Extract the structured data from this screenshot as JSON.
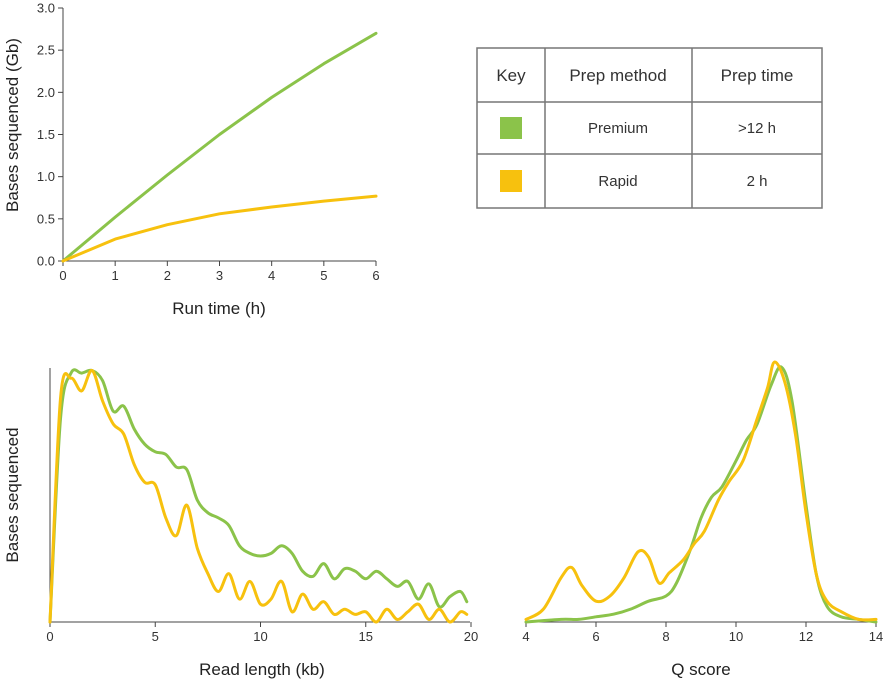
{
  "colors": {
    "premium": "#8bc34a",
    "rapid": "#f7c10e"
  },
  "chart_data": [
    {
      "type": "line",
      "xlabel": "Run time (h)",
      "ylabel": "Bases sequenced (Gb)",
      "xlim": [
        0,
        6
      ],
      "ylim": [
        0,
        3.0
      ],
      "xticks": [
        "0",
        "1",
        "2",
        "3",
        "4",
        "5",
        "6"
      ],
      "yticks": [
        "0.0",
        "0.5",
        "1.0",
        "1.5",
        "2.0",
        "2.5",
        "3.0"
      ],
      "series": [
        {
          "name": "Premium",
          "x": [
            0,
            1,
            2,
            3,
            4,
            5,
            6
          ],
          "values": [
            0,
            0.52,
            1.02,
            1.5,
            1.94,
            2.34,
            2.7
          ]
        },
        {
          "name": "Rapid",
          "x": [
            0,
            1,
            2,
            3,
            4,
            5,
            6
          ],
          "values": [
            0,
            0.26,
            0.43,
            0.56,
            0.64,
            0.71,
            0.77
          ]
        }
      ]
    },
    {
      "type": "line",
      "xlabel": "Read length (kb)",
      "ylabel": "Bases sequenced",
      "xlim": [
        0,
        20
      ],
      "ylim": [
        0,
        1
      ],
      "xticks": [
        "0",
        "5",
        "10",
        "15",
        "20"
      ],
      "series": [
        {
          "name": "Premium",
          "x": [
            0,
            0.5,
            1,
            1.5,
            2,
            2.5,
            3,
            3.5,
            4,
            4.5,
            5,
            5.5,
            6,
            6.5,
            7,
            7.5,
            8,
            8.5,
            9,
            9.5,
            10,
            10.5,
            11,
            11.5,
            12,
            12.5,
            13,
            13.5,
            14,
            14.5,
            15,
            15.5,
            16,
            16.5,
            17,
            17.5,
            18,
            18.5,
            19,
            19.5,
            19.8
          ],
          "values": [
            0,
            0.8,
            0.98,
            0.98,
            0.99,
            0.95,
            0.83,
            0.85,
            0.76,
            0.7,
            0.67,
            0.66,
            0.61,
            0.6,
            0.48,
            0.43,
            0.41,
            0.38,
            0.3,
            0.27,
            0.26,
            0.27,
            0.3,
            0.27,
            0.2,
            0.18,
            0.23,
            0.17,
            0.21,
            0.2,
            0.17,
            0.2,
            0.17,
            0.14,
            0.16,
            0.09,
            0.15,
            0.06,
            0.1,
            0.12,
            0.08
          ]
        },
        {
          "name": "Rapid",
          "x": [
            0,
            0.5,
            1,
            1.5,
            2,
            2.5,
            3,
            3.5,
            4,
            4.5,
            5,
            5.5,
            6,
            6.5,
            7,
            7.5,
            8,
            8.5,
            9,
            9.5,
            10,
            10.5,
            11,
            11.5,
            12,
            12.5,
            13,
            13.5,
            14,
            14.5,
            15,
            15.5,
            16,
            16.5,
            17,
            17.5,
            18,
            18.5,
            19,
            19.5,
            19.8
          ],
          "values": [
            0,
            0.88,
            0.96,
            0.91,
            0.99,
            0.87,
            0.78,
            0.74,
            0.62,
            0.55,
            0.54,
            0.41,
            0.34,
            0.46,
            0.29,
            0.19,
            0.12,
            0.19,
            0.09,
            0.16,
            0.07,
            0.09,
            0.16,
            0.04,
            0.11,
            0.05,
            0.08,
            0.03,
            0.05,
            0.03,
            0.04,
            0.0,
            0.05,
            0.01,
            0.04,
            0.07,
            0.01,
            0.05,
            0.0,
            0.04,
            0.03
          ]
        }
      ]
    },
    {
      "type": "line",
      "xlabel": "Q score",
      "xlim": [
        4,
        14
      ],
      "ylim": [
        0,
        1
      ],
      "xticks": [
        "4",
        "6",
        "8",
        "10",
        "12",
        "14"
      ],
      "series": [
        {
          "name": "Premium",
          "x": [
            4,
            5,
            5.5,
            6,
            6.5,
            7,
            7.5,
            8,
            8.3,
            8.7,
            9,
            9.3,
            9.6,
            10,
            10.3,
            10.6,
            11,
            11.3,
            11.6,
            12,
            12.3,
            12.6,
            13,
            13.5,
            14
          ],
          "values": [
            0,
            0.01,
            0.01,
            0.02,
            0.03,
            0.05,
            0.08,
            0.1,
            0.15,
            0.28,
            0.4,
            0.48,
            0.52,
            0.62,
            0.7,
            0.76,
            0.91,
            0.98,
            0.85,
            0.45,
            0.18,
            0.06,
            0.02,
            0.01,
            0
          ]
        },
        {
          "name": "Rapid",
          "x": [
            4,
            4.5,
            5,
            5.3,
            5.6,
            6,
            6.4,
            6.8,
            7.2,
            7.5,
            7.8,
            8.1,
            8.5,
            8.8,
            9.1,
            9.5,
            9.8,
            10.2,
            10.6,
            10.9,
            11.1,
            11.4,
            11.7,
            12,
            12.3,
            12.6,
            13,
            13.5,
            14
          ],
          "values": [
            0.01,
            0.05,
            0.17,
            0.21,
            0.14,
            0.08,
            0.1,
            0.17,
            0.27,
            0.25,
            0.15,
            0.19,
            0.24,
            0.3,
            0.35,
            0.47,
            0.54,
            0.62,
            0.78,
            0.9,
            1.0,
            0.92,
            0.72,
            0.42,
            0.18,
            0.08,
            0.04,
            0.01,
            0.01
          ]
        }
      ]
    }
  ],
  "key_table": {
    "headers": [
      "Key",
      "Prep method",
      "Prep time"
    ],
    "rows": [
      {
        "key_color": "#8bc34a",
        "method": "Premium",
        "time": ">12 h"
      },
      {
        "key_color": "#f7c10e",
        "method": "Rapid",
        "time": "2 h"
      }
    ]
  }
}
